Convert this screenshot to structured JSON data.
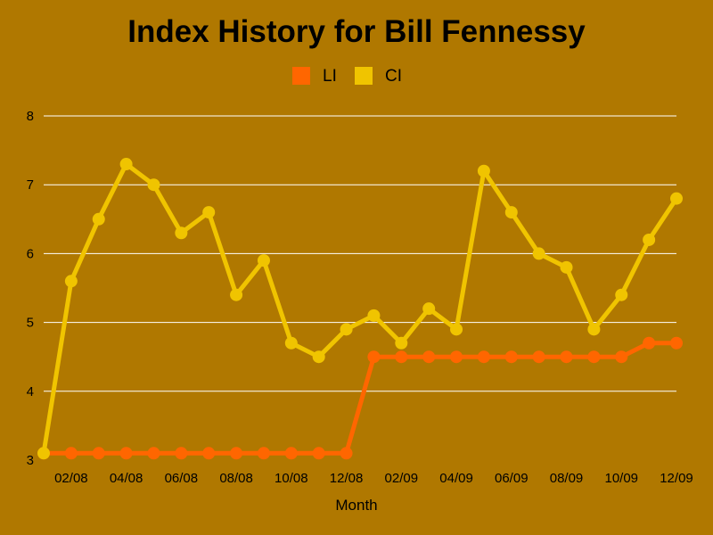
{
  "chart_data": {
    "type": "line",
    "title": "Index History for Bill Fennessy",
    "xlabel": "Month",
    "ylabel": "",
    "ylim": [
      3,
      8
    ],
    "yticks": [
      "3",
      "4",
      "5",
      "6",
      "7",
      "8"
    ],
    "grid": true,
    "legend_position": "top-center",
    "background_color": "#b07800",
    "x": [
      "01/08",
      "02/08",
      "03/08",
      "04/08",
      "05/08",
      "06/08",
      "07/08",
      "08/08",
      "09/08",
      "10/08",
      "11/08",
      "12/08",
      "01/09",
      "02/09",
      "03/09",
      "04/09",
      "05/09",
      "06/09",
      "07/09",
      "08/09",
      "09/09",
      "10/09",
      "11/09",
      "12/09"
    ],
    "xtick_labels": [
      "02/08",
      "04/08",
      "06/08",
      "08/08",
      "10/08",
      "12/08",
      "02/09",
      "04/09",
      "06/09",
      "08/09",
      "10/09",
      "12/09"
    ],
    "series": [
      {
        "name": "LI",
        "color": "#ff6600",
        "values": [
          3.1,
          3.1,
          3.1,
          3.1,
          3.1,
          3.1,
          3.1,
          3.1,
          3.1,
          3.1,
          3.1,
          3.1,
          4.5,
          4.5,
          4.5,
          4.5,
          4.5,
          4.5,
          4.5,
          4.5,
          4.5,
          4.5,
          4.7,
          4.7
        ]
      },
      {
        "name": "CI",
        "color": "#f0c400",
        "values": [
          3.1,
          5.6,
          6.5,
          7.3,
          7.0,
          6.3,
          6.6,
          5.4,
          5.9,
          4.7,
          4.5,
          4.9,
          5.1,
          4.7,
          5.2,
          4.9,
          7.2,
          6.6,
          6.0,
          5.8,
          4.9,
          5.4,
          6.2,
          6.8
        ]
      }
    ]
  }
}
